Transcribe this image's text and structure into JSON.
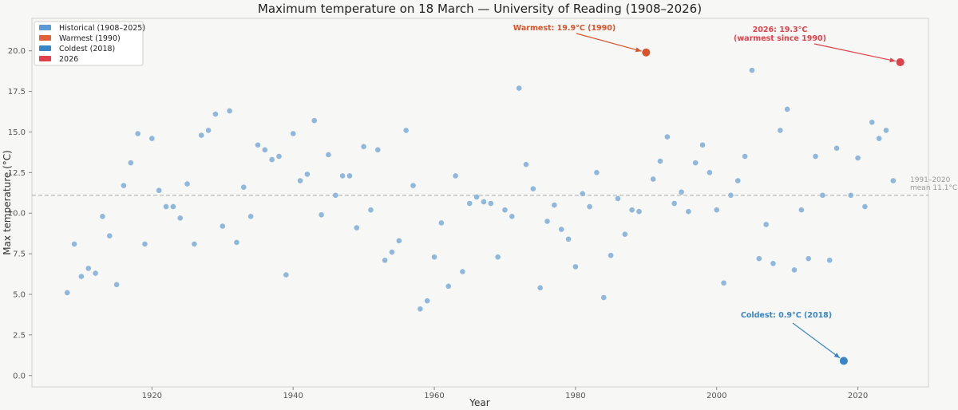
{
  "chart_data": {
    "type": "scatter",
    "title": "Maximum temperature on 18 March — University of Reading (1908–2026)",
    "xlabel": "Year",
    "ylabel": "Max temperature (°C)",
    "xlim": [
      1903,
      2030
    ],
    "ylim": [
      -0.7,
      22.0
    ],
    "x_ticks": [
      1920,
      1940,
      1960,
      1980,
      2000,
      2020
    ],
    "y_ticks": [
      0.0,
      2.5,
      5.0,
      7.5,
      10.0,
      12.5,
      15.0,
      17.5,
      20.0
    ],
    "legend": {
      "position": "top-left",
      "items": [
        {
          "label": "Historical (1908–2025)",
          "color": "#5b9bd5"
        },
        {
          "label": "Warmest (1990)",
          "color": "#e0613a"
        },
        {
          "label": "Coldest (2018)",
          "color": "#3a85c5"
        },
        {
          "label": "2026",
          "color": "#e0414a"
        }
      ]
    },
    "reference_line": {
      "value": 11.1,
      "label_line1": "1991–2020",
      "label_line2": "mean 11.1°C",
      "color": "#aaaaaa"
    },
    "colors": {
      "historical": "#8fb8dc",
      "warmest": "#d9532b",
      "coldest": "#3a85c5",
      "current": "#e0414a"
    },
    "series": [
      {
        "name": "Historical (1908–2025)",
        "x": [
          1908,
          1909,
          1910,
          1911,
          1912,
          1913,
          1914,
          1915,
          1916,
          1917,
          1918,
          1919,
          1920,
          1921,
          1922,
          1923,
          1924,
          1925,
          1926,
          1927,
          1928,
          1929,
          1930,
          1931,
          1932,
          1933,
          1934,
          1935,
          1936,
          1937,
          1938,
          1939,
          1940,
          1941,
          1942,
          1943,
          1944,
          1945,
          1946,
          1947,
          1948,
          1949,
          1950,
          1951,
          1952,
          1953,
          1954,
          1955,
          1956,
          1957,
          1958,
          1959,
          1960,
          1961,
          1962,
          1963,
          1964,
          1965,
          1966,
          1967,
          1968,
          1969,
          1970,
          1971,
          1972,
          1973,
          1974,
          1975,
          1976,
          1977,
          1978,
          1979,
          1980,
          1981,
          1982,
          1983,
          1984,
          1985,
          1986,
          1987,
          1988,
          1989,
          1991,
          1992,
          1993,
          1994,
          1995,
          1996,
          1997,
          1998,
          1999,
          2000,
          2001,
          2002,
          2003,
          2004,
          2005,
          2006,
          2007,
          2008,
          2009,
          2010,
          2011,
          2012,
          2013,
          2014,
          2015,
          2016,
          2017,
          2019,
          2020,
          2021,
          2022,
          2023,
          2024,
          2025
        ],
        "values": [
          5.1,
          8.1,
          6.1,
          6.6,
          6.3,
          9.8,
          8.6,
          5.6,
          11.7,
          13.1,
          14.9,
          8.1,
          14.6,
          11.4,
          10.4,
          10.4,
          9.7,
          11.8,
          8.1,
          14.8,
          15.1,
          16.1,
          9.2,
          16.3,
          8.2,
          11.6,
          9.8,
          14.2,
          13.9,
          13.3,
          13.5,
          6.2,
          14.9,
          12.0,
          12.4,
          15.7,
          9.9,
          13.6,
          11.1,
          12.3,
          12.3,
          9.1,
          14.1,
          10.2,
          13.9,
          7.1,
          7.6,
          8.3,
          15.1,
          11.7,
          4.1,
          4.6,
          7.3,
          9.4,
          5.5,
          12.3,
          6.4,
          10.6,
          11.0,
          10.7,
          10.6,
          7.3,
          10.2,
          9.8,
          17.7,
          13.0,
          11.5,
          5.4,
          9.5,
          10.5,
          9.0,
          8.4,
          6.7,
          11.2,
          10.4,
          12.5,
          4.8,
          7.4,
          10.9,
          8.7,
          10.2,
          10.1,
          12.1,
          13.2,
          14.7,
          10.6,
          11.3,
          10.1,
          13.1,
          14.2,
          12.5,
          10.2,
          5.7,
          11.1,
          12.0,
          13.5,
          18.8,
          7.2,
          9.3,
          6.9,
          15.1,
          16.4,
          6.5,
          10.2,
          7.2,
          13.5,
          11.1,
          7.1,
          14.0,
          11.1,
          13.4,
          10.4,
          15.6,
          14.6,
          15.1,
          12.0
        ]
      },
      {
        "name": "Warmest (1990)",
        "x": [
          1990
        ],
        "values": [
          19.9
        ]
      },
      {
        "name": "Coldest (2018)",
        "x": [
          2018
        ],
        "values": [
          0.9
        ]
      },
      {
        "name": "2026",
        "x": [
          2026
        ],
        "values": [
          19.3
        ]
      }
    ],
    "annotations": [
      {
        "target": "warmest",
        "lines": [
          "Warmest: 19.9°C (1990)"
        ],
        "color": "#d9532b"
      },
      {
        "target": "current",
        "lines": [
          "2026: 19.3°C",
          "(warmest since 1990)"
        ],
        "color": "#e0414a"
      },
      {
        "target": "coldest",
        "lines": [
          "Coldest: 0.9°C (2018)"
        ],
        "color": "#3a85c5"
      }
    ]
  }
}
